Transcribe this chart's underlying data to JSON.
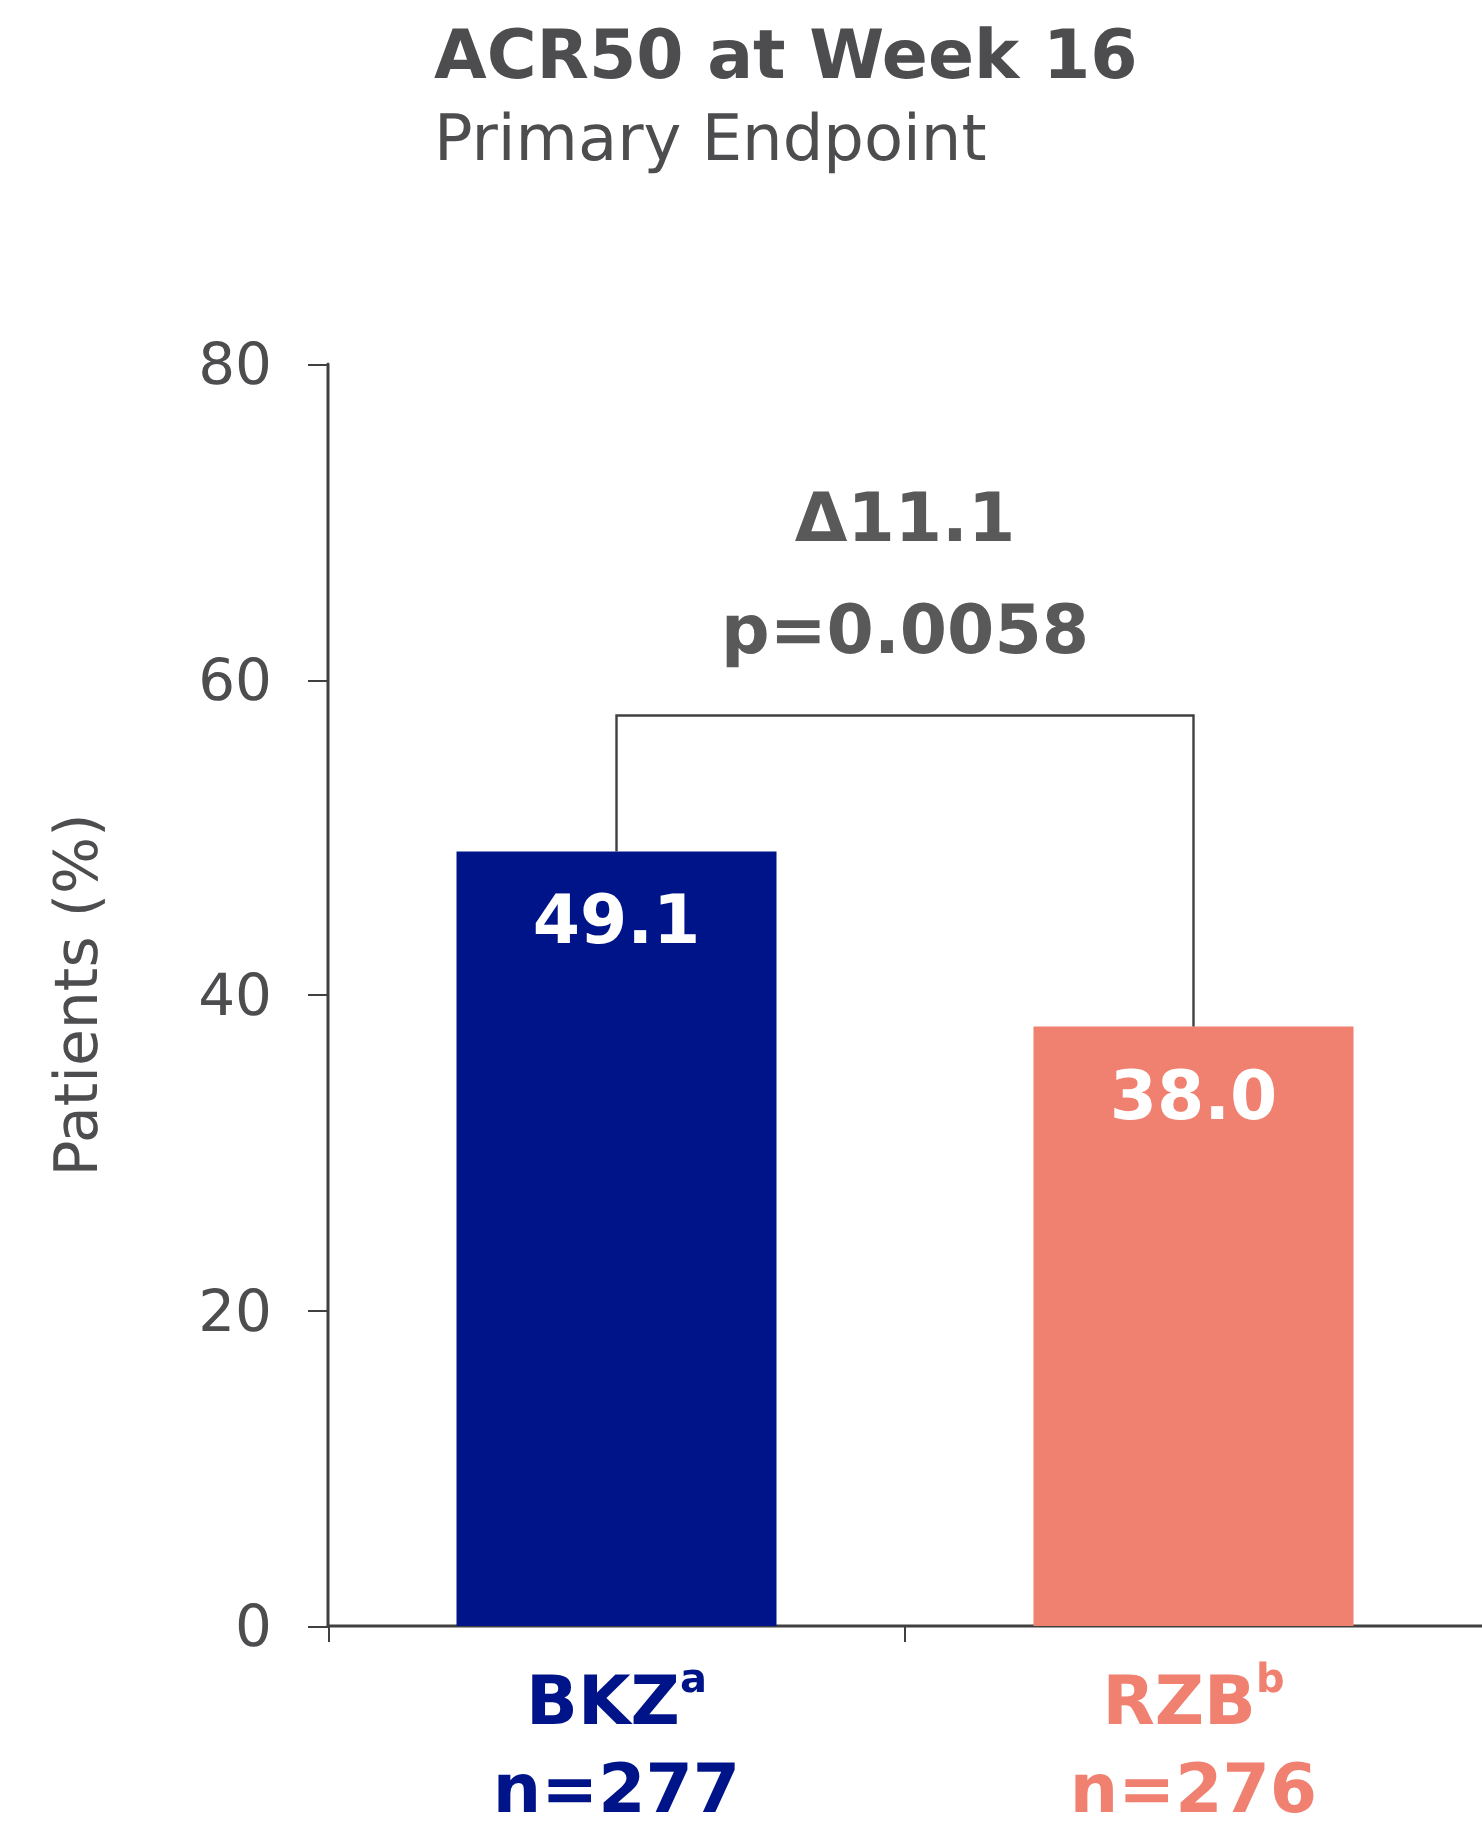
{
  "chart_data": {
    "type": "bar",
    "title": "ACR50 at Week 16",
    "subtitle": "Primary Endpoint",
    "ylabel": "Patients (%)",
    "categories": [
      "BKZ$^{a}$\nn=277",
      "RZB$^{b}$\nn=276"
    ],
    "values": [
      49.1,
      38.0
    ],
    "value_labels": [
      "49.1",
      "38.0"
    ],
    "colors": [
      "#001489",
      "#f08070"
    ],
    "ylim": [
      0,
      80
    ],
    "yticks": [
      0,
      20,
      40,
      60,
      80
    ],
    "annotations": [
      "Δ11.1\np=0.0058"
    ]
  }
}
